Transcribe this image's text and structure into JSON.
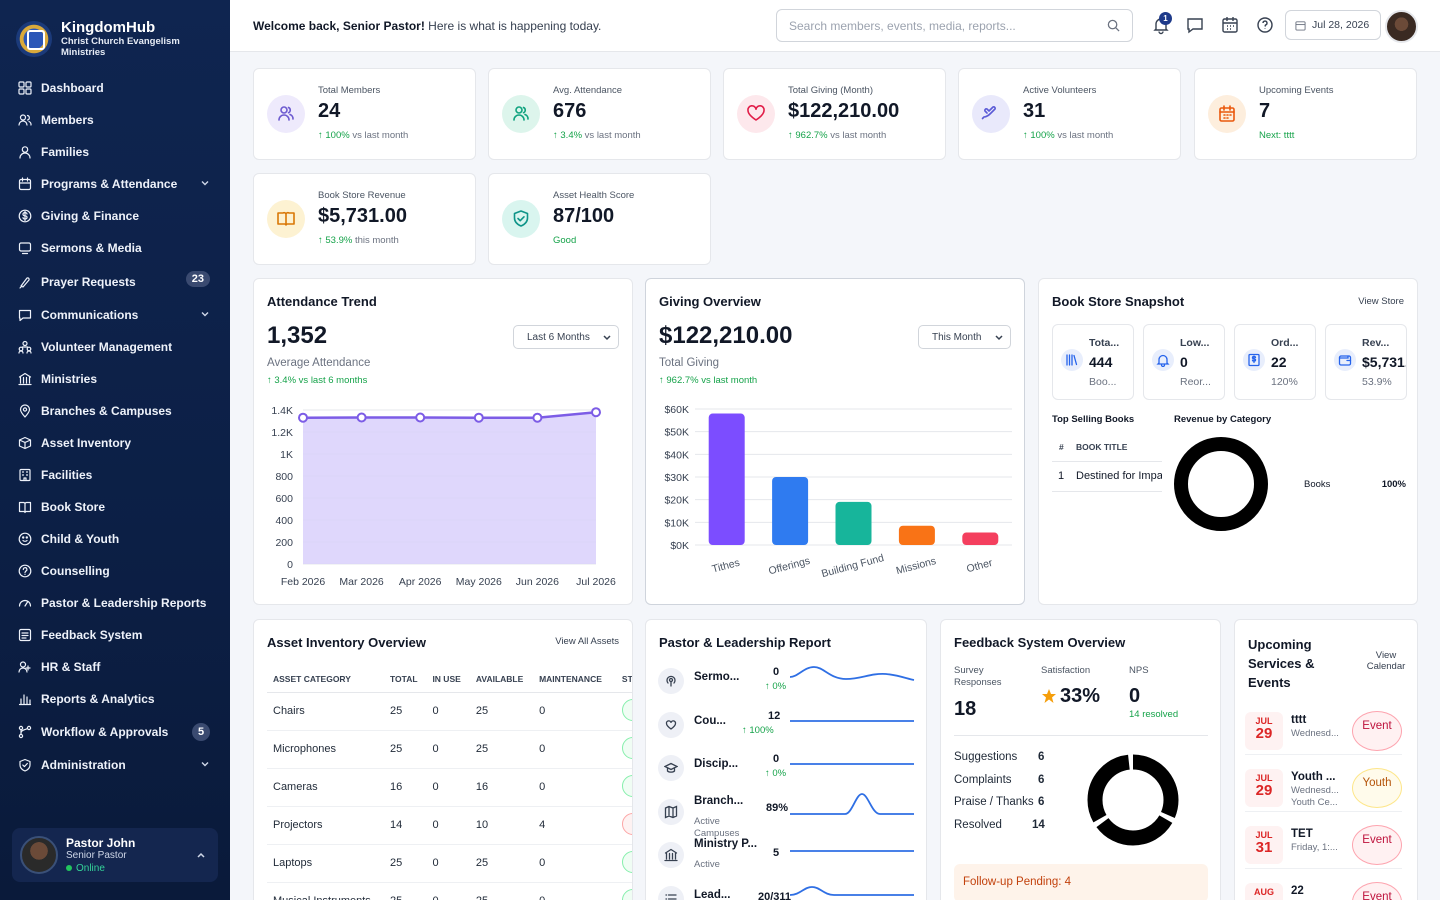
{
  "app": {
    "name": "KingdomHub",
    "org": "Christ Church Evangelism Ministries"
  },
  "sidebar": {
    "items": [
      {
        "label": "Dashboard",
        "icon": "dashboard-icon"
      },
      {
        "label": "Members",
        "icon": "members-icon"
      },
      {
        "label": "Families",
        "icon": "families-icon"
      },
      {
        "label": "Programs & Attendance",
        "icon": "calendar-icon",
        "expandable": true
      },
      {
        "label": "Giving & Finance",
        "icon": "dollar-icon"
      },
      {
        "label": "Sermons & Media",
        "icon": "media-icon"
      },
      {
        "label": "Prayer Requests",
        "icon": "prayer-icon",
        "badge": "23"
      },
      {
        "label": "Communications",
        "icon": "chat-icon",
        "expandable": true
      },
      {
        "label": "Volunteer Management",
        "icon": "volunteer-icon"
      },
      {
        "label": "Ministries",
        "icon": "building-icon"
      },
      {
        "label": "Branches & Campuses",
        "icon": "location-icon"
      },
      {
        "label": "Asset Inventory",
        "icon": "box-icon"
      },
      {
        "label": "Facilities",
        "icon": "facility-icon"
      },
      {
        "label": "Book Store",
        "icon": "book-icon"
      },
      {
        "label": "Child & Youth",
        "icon": "child-icon"
      },
      {
        "label": "Counselling",
        "icon": "help-icon"
      },
      {
        "label": "Pastor & Leadership Reports",
        "icon": "gauge-icon"
      },
      {
        "label": "Feedback System",
        "icon": "feedback-icon"
      },
      {
        "label": "HR & Staff",
        "icon": "staff-icon"
      },
      {
        "label": "Reports & Analytics",
        "icon": "bar-chart-icon"
      },
      {
        "label": "Workflow & Approvals",
        "icon": "workflow-icon",
        "badge": "5"
      },
      {
        "label": "Administration",
        "icon": "shield-icon",
        "expandable": true
      }
    ],
    "user": {
      "name": "Pastor John",
      "role": "Senior Pastor",
      "status": "Online"
    }
  },
  "header": {
    "welcome_bold": "Welcome back, Senior Pastor!",
    "welcome_rest": " Here is what is happening today.",
    "search_placeholder": "Search members, events, media, reports...",
    "notifications_count": "1",
    "date": "Jul 28, 2026"
  },
  "stats": [
    {
      "label": "Total Members",
      "value": "24",
      "change": "100%",
      "suffix": " vs last month",
      "color": "#6d5bd0",
      "bg": "#eeeafc"
    },
    {
      "label": "Avg. Attendance",
      "value": "676",
      "change": "3.4%",
      "suffix": " vs last month",
      "color": "#10a37f",
      "bg": "#ddf5ec"
    },
    {
      "label": "Total Giving (Month)",
      "value": "$122,210.00",
      "change": "962.7%",
      "suffix": " vs last month",
      "color": "#e11d48",
      "bg": "#fde8ec"
    },
    {
      "label": "Active Volunteers",
      "value": "31",
      "change": "100%",
      "suffix": " vs last month",
      "color": "#5b5bd6",
      "bg": "#e9e9fb"
    },
    {
      "label": "Upcoming Events",
      "value": "7",
      "change": "",
      "suffix": "Next: tttt",
      "color": "#ea580c",
      "bg": "#fdeedd"
    },
    {
      "label": "Book Store Revenue",
      "value": "$5,731.00",
      "change": "53.9%",
      "suffix": " this month",
      "color": "#d97706",
      "bg": "#fdf2d2"
    },
    {
      "label": "Asset Health Score",
      "value": "87/100",
      "change": "",
      "suffix": "Good",
      "color": "#0d9488",
      "bg": "#d9f5ef"
    }
  ],
  "attendance": {
    "title": "Attendance Trend",
    "value": "1,352",
    "label": "Average Attendance",
    "change": "↑ 3.4% vs last 6 months",
    "range": "Last 6 Months"
  },
  "giving": {
    "title": "Giving Overview",
    "value": "$122,210.00",
    "label": "Total Giving",
    "change": "↑ 962.7% vs last month",
    "range": "This Month"
  },
  "chart_data": [
    {
      "type": "area",
      "title": "Attendance Trend",
      "categories": [
        "Feb 2026",
        "Mar 2026",
        "Apr 2026",
        "May 2026",
        "Jun 2026",
        "Jul 2026"
      ],
      "values": [
        1330,
        1332,
        1332,
        1330,
        1330,
        1380
      ],
      "yticks": [
        "0",
        "200",
        "400",
        "600",
        "800",
        "1K",
        "1.2K",
        "1.4K"
      ],
      "ylim": [
        0,
        1400
      ],
      "color": "#7c5ce6",
      "grid": true
    },
    {
      "type": "bar",
      "title": "Giving Overview",
      "categories": [
        "Tithes",
        "Offerings",
        "Building Fund",
        "Missions",
        "Other"
      ],
      "values": [
        58000,
        30000,
        19000,
        8500,
        5500
      ],
      "colors": [
        "#7c4dff",
        "#2f7bf0",
        "#17b59b",
        "#f97316",
        "#f43f5e"
      ],
      "yticks": [
        "$0K",
        "$10K",
        "$20K",
        "$30K",
        "$40K",
        "$50K",
        "$60K"
      ],
      "ylim": [
        0,
        60000
      ],
      "grid": true
    },
    {
      "type": "pie",
      "title": "Revenue by Category",
      "slices": [
        {
          "label": "Books",
          "value": 100,
          "display": "100%"
        }
      ]
    }
  ],
  "bookstore": {
    "title": "Book Store Snapshot",
    "link": "View Store",
    "minis": [
      {
        "title": "Tota...",
        "value": "444",
        "sub": "Boo...",
        "icon": "library-icon"
      },
      {
        "title": "Low...",
        "value": "0",
        "sub": "Reor...",
        "icon": "bell-icon"
      },
      {
        "title": "Ord...",
        "value": "22",
        "sub": "120%",
        "icon": "receipt-icon"
      },
      {
        "title": "Rev...",
        "value": "$5,731.0",
        "sub": "53.9%",
        "icon": "wallet-icon"
      }
    ],
    "top_selling_title": "Top Selling Books",
    "col_num": "#",
    "col_title": "BOOK TITLE",
    "rows": [
      {
        "n": "1",
        "title": "Destined for Impa"
      }
    ],
    "revenue_title": "Revenue by Category"
  },
  "assets": {
    "title": "Asset Inventory Overview",
    "link": "View All Assets",
    "headers": [
      "ASSET CATEGORY",
      "TOTAL",
      "IN USE",
      "AVAILABLE",
      "MAINTENANCE",
      "ST"
    ],
    "rows": [
      [
        "Chairs",
        "25",
        "0",
        "25",
        "0"
      ],
      [
        "Microphones",
        "25",
        "0",
        "25",
        "0"
      ],
      [
        "Cameras",
        "16",
        "0",
        "16",
        "0"
      ],
      [
        "Projectors",
        "14",
        "0",
        "10",
        "4"
      ],
      [
        "Laptops",
        "25",
        "0",
        "25",
        "0"
      ],
      [
        "Musical Instruments",
        "25",
        "0",
        "25",
        "0"
      ]
    ]
  },
  "leadership": {
    "title": "Pastor & Leadership Report",
    "rows": [
      {
        "name": "Sermo...",
        "sub": "",
        "value": "0",
        "change": "↑ 0%",
        "icon": "podcast-icon"
      },
      {
        "name": "Cou...",
        "sub": "",
        "value": "12",
        "change": "↑ 100%",
        "icon": "heart-chat-icon"
      },
      {
        "name": "Discip...",
        "sub": "",
        "value": "0",
        "change": "↑ 0%",
        "icon": "graduation-icon"
      },
      {
        "name": "Branch...",
        "sub": "Active Campuses",
        "value": "89%",
        "change": "",
        "icon": "map-icon"
      },
      {
        "name": "Ministry P...",
        "sub": "Active",
        "value": "5",
        "change": "",
        "icon": "building-icon"
      },
      {
        "name": "Lead...",
        "sub": "",
        "value": "20/311",
        "change": "",
        "icon": "list-icon"
      }
    ]
  },
  "feedback": {
    "title": "Feedback System Overview",
    "survey_label": "Survey Responses",
    "survey_value": "18",
    "satisfaction_label": "Satisfaction",
    "satisfaction_value": "33%",
    "nps_label": "NPS",
    "nps_value": "0",
    "nps_sub": "14 resolved",
    "rows": [
      {
        "label": "Suggestions",
        "value": "6"
      },
      {
        "label": "Complaints",
        "value": "6"
      },
      {
        "label": "Praise / Thanks",
        "value": "6"
      },
      {
        "label": "Resolved",
        "value": "14"
      }
    ],
    "pending": "Follow-up Pending: 4"
  },
  "events": {
    "title": "Upcoming Services & Events",
    "link": "View Calendar",
    "items": [
      {
        "month": "JUL",
        "day": "29",
        "title": "tttt",
        "sub": "Wednesd...",
        "sub2": "",
        "tag": "Event"
      },
      {
        "month": "JUL",
        "day": "29",
        "title": "Youth ...",
        "sub": "Wednesd...",
        "sub2": "Youth Ce...",
        "tag": "Youth"
      },
      {
        "month": "JUL",
        "day": "31",
        "title": "TET",
        "sub": "Friday, 1:...",
        "sub2": "",
        "tag": "Event"
      },
      {
        "month": "AUG",
        "day": "",
        "title": "22",
        "sub": "",
        "sub2": "",
        "tag": "Event"
      }
    ]
  }
}
